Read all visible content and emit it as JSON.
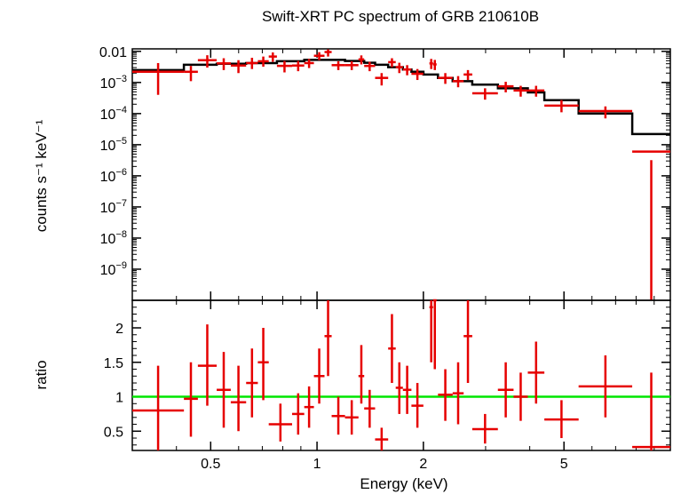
{
  "chart_data": [
    {
      "type": "scatter",
      "panel": "spectrum",
      "title": "Swift-XRT PC spectrum of GRB 210610B",
      "ylabel": "counts s⁻¹ keV⁻¹",
      "xscale": "log",
      "yscale": "log",
      "xlim": [
        0.3,
        10
      ],
      "ylim": [
        1e-10,
        0.012
      ],
      "yticks": [
        {
          "value": 0.01,
          "label": "0.01"
        },
        {
          "value": 0.001,
          "base": "10",
          "exp": "−3"
        },
        {
          "value": 0.0001,
          "base": "10",
          "exp": "−4"
        },
        {
          "value": 1e-05,
          "base": "10",
          "exp": "−5"
        },
        {
          "value": 1e-06,
          "base": "10",
          "exp": "−6"
        },
        {
          "value": 1e-07,
          "base": "10",
          "exp": "−7"
        },
        {
          "value": 1e-08,
          "base": "10",
          "exp": "−8"
        },
        {
          "value": 1e-09,
          "base": "10",
          "exp": "−9"
        }
      ],
      "series": [
        {
          "kind": "data",
          "color": "#e60000",
          "points": [
            {
              "xlo": 0.3,
              "xhi": 0.42,
              "y": 0.0022,
              "ylo": 0.0004,
              "yhi": 0.0042
            },
            {
              "xlo": 0.42,
              "xhi": 0.46,
              "y": 0.0022,
              "ylo": 0.0011,
              "yhi": 0.0034
            },
            {
              "xlo": 0.46,
              "xhi": 0.52,
              "y": 0.0052,
              "ylo": 0.003,
              "yhi": 0.0075
            },
            {
              "xlo": 0.52,
              "xhi": 0.57,
              "y": 0.0041,
              "ylo": 0.0025,
              "yhi": 0.006
            },
            {
              "xlo": 0.57,
              "xhi": 0.63,
              "y": 0.0035,
              "ylo": 0.002,
              "yhi": 0.0052
            },
            {
              "xlo": 0.63,
              "xhi": 0.68,
              "y": 0.0042,
              "ylo": 0.0027,
              "yhi": 0.0062
            },
            {
              "xlo": 0.68,
              "xhi": 0.73,
              "y": 0.0048,
              "ylo": 0.0032,
              "yhi": 0.0068
            },
            {
              "xlo": 0.73,
              "xhi": 0.77,
              "y": 0.0068,
              "ylo": 0.0046,
              "yhi": 0.0092
            },
            {
              "xlo": 0.77,
              "xhi": 0.85,
              "y": 0.0034,
              "ylo": 0.0021,
              "yhi": 0.0049
            },
            {
              "xlo": 0.85,
              "xhi": 0.92,
              "y": 0.0035,
              "ylo": 0.0023,
              "yhi": 0.0049
            },
            {
              "xlo": 0.92,
              "xhi": 0.98,
              "y": 0.0042,
              "ylo": 0.0029,
              "yhi": 0.0057
            },
            {
              "xlo": 0.98,
              "xhi": 1.05,
              "y": 0.0072,
              "ylo": 0.0052,
              "yhi": 0.0094
            },
            {
              "xlo": 1.05,
              "xhi": 1.1,
              "y": 0.0095,
              "ylo": 0.0068,
              "yhi": 0.0115
            },
            {
              "xlo": 1.1,
              "xhi": 1.2,
              "y": 0.0036,
              "ylo": 0.0025,
              "yhi": 0.0048
            },
            {
              "xlo": 1.2,
              "xhi": 1.31,
              "y": 0.0036,
              "ylo": 0.0025,
              "yhi": 0.0048
            },
            {
              "xlo": 1.31,
              "xhi": 1.36,
              "y": 0.0055,
              "ylo": 0.0038,
              "yhi": 0.0074
            },
            {
              "xlo": 1.36,
              "xhi": 1.46,
              "y": 0.0034,
              "ylo": 0.0023,
              "yhi": 0.0046
            },
            {
              "xlo": 1.46,
              "xhi": 1.59,
              "y": 0.0014,
              "ylo": 0.0008,
              "yhi": 0.002
            },
            {
              "xlo": 1.59,
              "xhi": 1.67,
              "y": 0.0045,
              "ylo": 0.0031,
              "yhi": 0.006
            },
            {
              "xlo": 1.67,
              "xhi": 1.75,
              "y": 0.0031,
              "ylo": 0.002,
              "yhi": 0.0043
            },
            {
              "xlo": 1.75,
              "xhi": 1.85,
              "y": 0.0026,
              "ylo": 0.0017,
              "yhi": 0.0036
            },
            {
              "xlo": 1.85,
              "xhi": 2.0,
              "y": 0.0019,
              "ylo": 0.0012,
              "yhi": 0.0027
            },
            {
              "xlo": 2.08,
              "xhi": 2.13,
              "y": 0.0041,
              "ylo": 0.0027,
              "yhi": 0.0057
            },
            {
              "xlo": 2.13,
              "xhi": 2.18,
              "y": 0.0038,
              "ylo": 0.0025,
              "yhi": 0.0053
            },
            {
              "xlo": 2.2,
              "xhi": 2.42,
              "y": 0.0014,
              "ylo": 0.0009,
              "yhi": 0.002
            },
            {
              "xlo": 2.42,
              "xhi": 2.6,
              "y": 0.0011,
              "ylo": 0.0007,
              "yhi": 0.0016
            },
            {
              "xlo": 2.6,
              "xhi": 2.75,
              "y": 0.0018,
              "ylo": 0.0012,
              "yhi": 0.0025
            },
            {
              "xlo": 2.75,
              "xhi": 3.25,
              "y": 0.00045,
              "ylo": 0.00028,
              "yhi": 0.00065
            },
            {
              "xlo": 3.25,
              "xhi": 3.6,
              "y": 0.00075,
              "ylo": 0.00048,
              "yhi": 0.00105
            },
            {
              "xlo": 3.6,
              "xhi": 3.95,
              "y": 0.00055,
              "ylo": 0.00035,
              "yhi": 0.00078
            },
            {
              "xlo": 3.95,
              "xhi": 4.4,
              "y": 0.00055,
              "ylo": 0.00035,
              "yhi": 0.00078
            },
            {
              "xlo": 4.4,
              "xhi": 5.5,
              "y": 0.00018,
              "ylo": 0.00011,
              "yhi": 0.00027
            },
            {
              "xlo": 5.5,
              "xhi": 7.8,
              "y": 0.00012,
              "ylo": 7e-05,
              "yhi": 0.00017
            },
            {
              "xlo": 7.8,
              "xhi": 10,
              "y": 6e-06,
              "ylo": 1e-10,
              "yhi": 3.2e-06
            }
          ]
        },
        {
          "kind": "model",
          "color": "#000000",
          "steps": [
            {
              "x0": 0.3,
              "x1": 0.42,
              "y": 0.0025
            },
            {
              "x0": 0.42,
              "x1": 0.52,
              "y": 0.0037
            },
            {
              "x0": 0.52,
              "x1": 0.63,
              "y": 0.004
            },
            {
              "x0": 0.63,
              "x1": 0.77,
              "y": 0.0042
            },
            {
              "x0": 0.77,
              "x1": 0.92,
              "y": 0.0048
            },
            {
              "x0": 0.92,
              "x1": 1.2,
              "y": 0.0053
            },
            {
              "x0": 1.2,
              "x1": 1.36,
              "y": 0.0049
            },
            {
              "x0": 1.36,
              "x1": 1.46,
              "y": 0.0043
            },
            {
              "x0": 1.46,
              "x1": 1.59,
              "y": 0.0037
            },
            {
              "x0": 1.59,
              "x1": 1.75,
              "y": 0.0031
            },
            {
              "x0": 1.75,
              "x1": 1.85,
              "y": 0.0026
            },
            {
              "x0": 1.85,
              "x1": 2.0,
              "y": 0.0022
            },
            {
              "x0": 2.0,
              "x1": 2.2,
              "y": 0.0018
            },
            {
              "x0": 2.2,
              "x1": 2.42,
              "y": 0.0014
            },
            {
              "x0": 2.42,
              "x1": 2.75,
              "y": 0.0011
            },
            {
              "x0": 2.75,
              "x1": 3.25,
              "y": 0.00085
            },
            {
              "x0": 3.25,
              "x1": 3.95,
              "y": 0.00065
            },
            {
              "x0": 3.95,
              "x1": 4.4,
              "y": 0.00048
            },
            {
              "x0": 4.4,
              "x1": 5.5,
              "y": 0.00027
            },
            {
              "x0": 5.5,
              "x1": 7.8,
              "y": 0.0001
            },
            {
              "x0": 7.8,
              "x1": 10,
              "y": 2.2e-05
            }
          ]
        }
      ]
    },
    {
      "type": "scatter",
      "panel": "ratio",
      "xlabel": "Energy (keV)",
      "ylabel": "ratio",
      "xscale": "log",
      "xlim": [
        0.3,
        10
      ],
      "ylim": [
        0.22,
        2.4
      ],
      "xticks": [
        {
          "value": 0.5,
          "label": "0.5"
        },
        {
          "value": 1,
          "label": "1"
        },
        {
          "value": 2,
          "label": "2"
        },
        {
          "value": 5,
          "label": "5"
        }
      ],
      "yticks": [
        {
          "value": 0.5,
          "label": "0.5"
        },
        {
          "value": 1,
          "label": "1"
        },
        {
          "value": 1.5,
          "label": "1.5"
        },
        {
          "value": 2,
          "label": "2"
        }
      ],
      "reference_line": {
        "y": 1,
        "color": "#00e600"
      },
      "series": [
        {
          "kind": "ratio",
          "color": "#e60000",
          "points": [
            {
              "xlo": 0.3,
              "xhi": 0.42,
              "y": 0.8,
              "ylo": 0.22,
              "yhi": 1.45
            },
            {
              "xlo": 0.42,
              "xhi": 0.46,
              "y": 0.97,
              "ylo": 0.42,
              "yhi": 1.5
            },
            {
              "xlo": 0.46,
              "xhi": 0.52,
              "y": 1.45,
              "ylo": 0.87,
              "yhi": 2.05
            },
            {
              "xlo": 0.52,
              "xhi": 0.57,
              "y": 1.1,
              "ylo": 0.55,
              "yhi": 1.65
            },
            {
              "xlo": 0.57,
              "xhi": 0.63,
              "y": 0.92,
              "ylo": 0.5,
              "yhi": 1.45
            },
            {
              "xlo": 0.63,
              "xhi": 0.68,
              "y": 1.2,
              "ylo": 0.7,
              "yhi": 1.7
            },
            {
              "xlo": 0.68,
              "xhi": 0.73,
              "y": 1.5,
              "ylo": 0.95,
              "yhi": 2.0
            },
            {
              "xlo": 0.73,
              "xhi": 0.85,
              "y": 0.6,
              "ylo": 0.35,
              "yhi": 0.9
            },
            {
              "xlo": 0.85,
              "xhi": 0.92,
              "y": 0.75,
              "ylo": 0.45,
              "yhi": 1.05
            },
            {
              "xlo": 0.92,
              "xhi": 0.98,
              "y": 0.85,
              "ylo": 0.55,
              "yhi": 1.15
            },
            {
              "xlo": 0.98,
              "xhi": 1.05,
              "y": 1.3,
              "ylo": 0.9,
              "yhi": 1.7
            },
            {
              "xlo": 1.05,
              "xhi": 1.1,
              "y": 1.88,
              "ylo": 1.3,
              "yhi": 2.4
            },
            {
              "xlo": 1.1,
              "xhi": 1.2,
              "y": 0.72,
              "ylo": 0.45,
              "yhi": 1.0
            },
            {
              "xlo": 1.2,
              "xhi": 1.31,
              "y": 0.7,
              "ylo": 0.45,
              "yhi": 0.95
            },
            {
              "xlo": 1.31,
              "xhi": 1.36,
              "y": 1.3,
              "ylo": 0.9,
              "yhi": 1.75
            },
            {
              "xlo": 1.36,
              "xhi": 1.46,
              "y": 0.83,
              "ylo": 0.55,
              "yhi": 1.1
            },
            {
              "xlo": 1.46,
              "xhi": 1.59,
              "y": 0.38,
              "ylo": 0.22,
              "yhi": 0.55
            },
            {
              "xlo": 1.59,
              "xhi": 1.67,
              "y": 1.7,
              "ylo": 1.2,
              "yhi": 2.2
            },
            {
              "xlo": 1.67,
              "xhi": 1.75,
              "y": 1.13,
              "ylo": 0.75,
              "yhi": 1.5
            },
            {
              "xlo": 1.75,
              "xhi": 1.85,
              "y": 1.1,
              "ylo": 0.75,
              "yhi": 1.45
            },
            {
              "xlo": 1.85,
              "xhi": 2.0,
              "y": 0.87,
              "ylo": 0.55,
              "yhi": 1.2
            },
            {
              "xlo": 2.08,
              "xhi": 2.13,
              "y": 2.3,
              "ylo": 1.5,
              "yhi": 2.4
            },
            {
              "xlo": 2.13,
              "xhi": 2.18,
              "y": 2.4,
              "ylo": 1.4,
              "yhi": 2.4
            },
            {
              "xlo": 2.2,
              "xhi": 2.42,
              "y": 1.03,
              "ylo": 0.65,
              "yhi": 1.4
            },
            {
              "xlo": 2.42,
              "xhi": 2.6,
              "y": 1.05,
              "ylo": 0.6,
              "yhi": 1.5
            },
            {
              "xlo": 2.6,
              "xhi": 2.75,
              "y": 1.88,
              "ylo": 1.2,
              "yhi": 2.4
            },
            {
              "xlo": 2.75,
              "xhi": 3.25,
              "y": 0.53,
              "ylo": 0.32,
              "yhi": 0.75
            },
            {
              "xlo": 3.25,
              "xhi": 3.6,
              "y": 1.1,
              "ylo": 0.7,
              "yhi": 1.5
            },
            {
              "xlo": 3.6,
              "xhi": 3.95,
              "y": 1.0,
              "ylo": 0.65,
              "yhi": 1.35
            },
            {
              "xlo": 3.95,
              "xhi": 4.4,
              "y": 1.35,
              "ylo": 0.9,
              "yhi": 1.8
            },
            {
              "xlo": 4.4,
              "xhi": 5.5,
              "y": 0.67,
              "ylo": 0.4,
              "yhi": 0.95
            },
            {
              "xlo": 5.5,
              "xhi": 7.8,
              "y": 1.15,
              "ylo": 0.7,
              "yhi": 1.6
            },
            {
              "xlo": 7.8,
              "xhi": 10,
              "y": 0.27,
              "ylo": 0.22,
              "yhi": 1.35
            }
          ]
        }
      ]
    }
  ]
}
